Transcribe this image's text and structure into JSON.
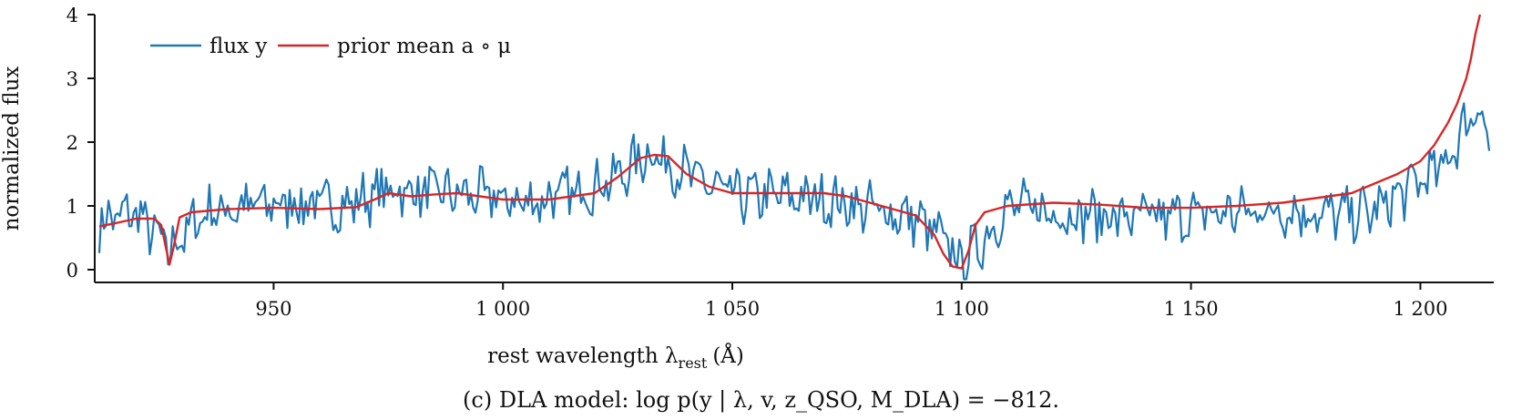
{
  "chart_data": {
    "type": "line",
    "xlabel": "rest wavelength λ",
    "xlabel_sub": "rest",
    "xlabel_unit": "(Å)",
    "ylabel": "normalized flux",
    "xlim": [
      911,
      1216
    ],
    "ylim": [
      -0.2,
      4
    ],
    "x_ticks": [
      950,
      1000,
      1050,
      1100,
      1150,
      1200
    ],
    "x_tick_labels": [
      "950",
      "1 000",
      "1 050",
      "1 100",
      "1 150",
      "1 200"
    ],
    "y_ticks": [
      0,
      1,
      2,
      3,
      4
    ],
    "y_tick_labels": [
      "0",
      "1",
      "2",
      "3",
      "4"
    ],
    "grid": false,
    "legend": "top-left",
    "series": [
      {
        "name": "flux y",
        "color": "#1f77b4",
        "x_start": 912,
        "x_end": 1215,
        "noise_amplitude": 0.35,
        "x": [
          912,
          920,
          927,
          935,
          945,
          955,
          965,
          975,
          985,
          995,
          1005,
          1015,
          1025,
          1032,
          1040,
          1050,
          1060,
          1070,
          1080,
          1090,
          1096,
          1100,
          1105,
          1110,
          1120,
          1130,
          1140,
          1150,
          1160,
          1170,
          1180,
          1190,
          1200,
          1205,
          1210,
          1213,
          1215
        ],
        "y": [
          0.75,
          0.9,
          0.3,
          0.9,
          1.0,
          1.05,
          1.0,
          1.25,
          1.2,
          1.15,
          1.05,
          1.2,
          1.45,
          1.85,
          1.5,
          1.15,
          1.15,
          1.1,
          0.95,
          0.8,
          0.45,
          0.1,
          0.5,
          1.0,
          0.9,
          0.85,
          0.8,
          0.85,
          0.9,
          0.95,
          0.85,
          0.9,
          1.4,
          1.6,
          2.3,
          2.6,
          2.0
        ]
      },
      {
        "name": "prior mean a ∘ μ",
        "color": "#d62728",
        "x": [
          912,
          915,
          920,
          924,
          925.5,
          926.5,
          927.3,
          928.2,
          929.5,
          932,
          940,
          950,
          960,
          968,
          972,
          975,
          980,
          985,
          990,
          1000,
          1010,
          1020,
          1025,
          1030,
          1033,
          1036,
          1040,
          1045,
          1050,
          1055,
          1060,
          1070,
          1075,
          1080,
          1085,
          1090,
          1094,
          1096,
          1098,
          1100,
          1101.5,
          1103,
          1105,
          1110,
          1120,
          1130,
          1140,
          1150,
          1160,
          1170,
          1180,
          1185,
          1190,
          1195,
          1200,
          1203,
          1206,
          1208,
          1210,
          1211,
          1212,
          1213
        ],
        "y": [
          0.68,
          0.72,
          0.8,
          0.8,
          0.7,
          0.35,
          0.08,
          0.35,
          0.82,
          0.9,
          0.95,
          0.97,
          0.95,
          0.98,
          1.1,
          1.2,
          1.15,
          1.18,
          1.2,
          1.1,
          1.1,
          1.2,
          1.45,
          1.75,
          1.8,
          1.78,
          1.5,
          1.3,
          1.2,
          1.2,
          1.2,
          1.2,
          1.15,
          1.05,
          0.95,
          0.85,
          0.55,
          0.25,
          0.05,
          0.02,
          0.3,
          0.7,
          0.9,
          1.0,
          1.05,
          1.02,
          0.97,
          0.97,
          1.0,
          1.05,
          1.15,
          1.2,
          1.35,
          1.5,
          1.7,
          1.95,
          2.3,
          2.6,
          3.0,
          3.3,
          3.7,
          4.0
        ]
      }
    ],
    "caption": "(c) DLA model: log p(y | λ, v, z_QSO, M_DLA) = −812."
  }
}
